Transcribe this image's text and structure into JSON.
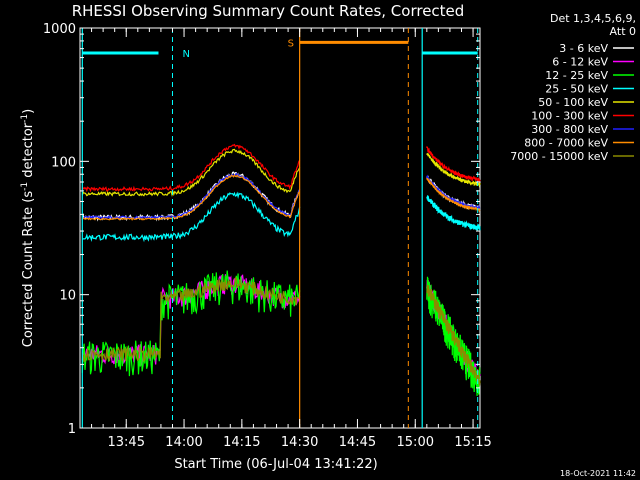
{
  "chart_data": {
    "type": "line",
    "title": "RHESSI Observing Summary Count Rates, Corrected",
    "xlabel": "Start Time (06-Jul-04 13:41:22)",
    "ylabel_main": "Corrected Count Rate (s",
    "ylabel_sup1": "-1",
    "ylabel_mid": " detector",
    "ylabel_sup2": "-1",
    "ylabel_end": ")",
    "yscale": "log",
    "ylim": [
      1,
      1000
    ],
    "xlim_minutes": [
      13.55,
      15.28
    ],
    "y_ticks": [
      {
        "value": 1,
        "label": "1"
      },
      {
        "value": 10,
        "label": "10"
      },
      {
        "value": 100,
        "label": "100"
      },
      {
        "value": 1000,
        "label": "1000"
      }
    ],
    "x_ticks": [
      {
        "value": 13.75,
        "label": "13:45"
      },
      {
        "value": 14.0,
        "label": "14:00"
      },
      {
        "value": 14.25,
        "label": "14:15"
      },
      {
        "value": 14.5,
        "label": "14:30"
      },
      {
        "value": 14.75,
        "label": "14:45"
      },
      {
        "value": 15.0,
        "label": "15:00"
      },
      {
        "value": 15.25,
        "label": "15:15"
      }
    ],
    "legend_position": "right",
    "detectors_line1": "Det 1,3,4,5,6,9,",
    "detectors_line2": "Att 0",
    "timestamp": "18-Oct-2021 11:42",
    "series": [
      {
        "name": "3 - 6 keV",
        "color": "#ffffff",
        "level": 38,
        "offset_after": 1.35,
        "noise": 0.04
      },
      {
        "name": "6 - 12 keV",
        "color": "#ff00ff",
        "level": 3.6,
        "offset_after": 1.0,
        "noise": 0.06
      },
      {
        "name": "12 - 25 keV",
        "color": "#00ff00",
        "level": 3.5,
        "offset_after": 1.0,
        "noise": 0.1
      },
      {
        "name": "25 - 50 keV",
        "color": "#00ffff",
        "level": 27,
        "offset_after": 1.35,
        "noise": 0.05
      },
      {
        "name": "50 - 100 keV",
        "color": "#e6e600",
        "level": 57,
        "offset_after": 1.35,
        "noise": 0.03
      },
      {
        "name": "100 - 300 keV",
        "color": "#ff0000",
        "level": 62,
        "offset_after": 1.35,
        "noise": 0.03
      },
      {
        "name": "300 - 800 keV",
        "color": "#2020ff",
        "level": 38,
        "offset_after": 1.35,
        "noise": 0.02
      },
      {
        "name": "800 - 7000 keV",
        "color": "#ff8c00",
        "level": 37,
        "offset_after": 1.35,
        "noise": 0.015
      },
      {
        "name": "7000 - 15000 keV",
        "color": "#8b8b00",
        "level": 3.6,
        "offset_after": 1.0,
        "noise": 0.04
      }
    ],
    "segments": [
      {
        "start": 13.56,
        "end": 14.5
      },
      {
        "start": 15.05,
        "end": 15.28
      }
    ],
    "night_markers": [
      {
        "label": "N",
        "start": 13.56,
        "end": 13.95,
        "color": "#00ffff",
        "y": 650
      },
      {
        "label": "",
        "start": 15.03,
        "end": 15.27,
        "color": "#00ffff",
        "y": 650
      }
    ],
    "saa_markers": [
      {
        "label": "S",
        "start": 14.5,
        "end": 14.97,
        "color": "#ff8c00",
        "y": 780
      }
    ]
  }
}
